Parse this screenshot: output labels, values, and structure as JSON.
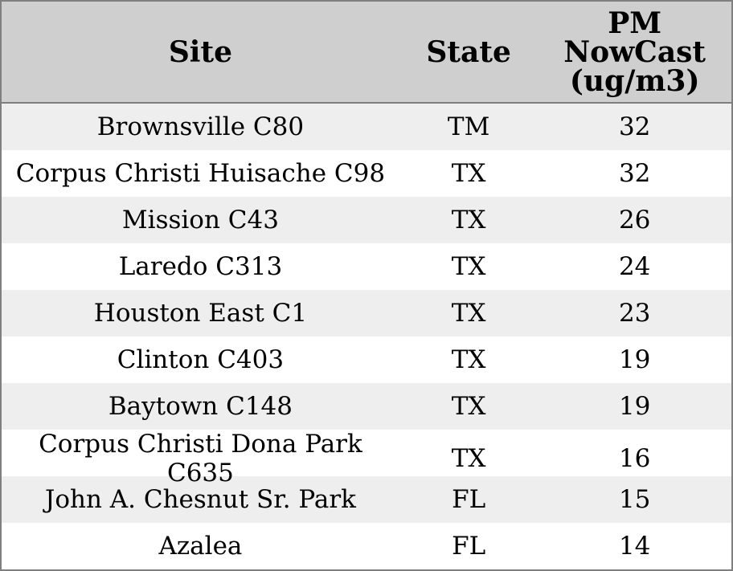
{
  "colors": {
    "header_bg": "#cfcfcf",
    "row_stripe_bg": "#eeeeee",
    "row_bg": "#ffffff",
    "border": "#7f7f7f",
    "text": "#000000"
  },
  "table": {
    "columns": [
      {
        "label": "Site"
      },
      {
        "label": "State"
      },
      {
        "label": "PM NowCast (ug/m3)"
      }
    ],
    "rows": [
      {
        "site": "Brownsville C80",
        "state": "TM",
        "pm": "32"
      },
      {
        "site": "Corpus Christi Huisache C98",
        "state": "TX",
        "pm": "32"
      },
      {
        "site": "Mission C43",
        "state": "TX",
        "pm": "26"
      },
      {
        "site": "Laredo C313",
        "state": "TX",
        "pm": "24"
      },
      {
        "site": "Houston East C1",
        "state": "TX",
        "pm": "23"
      },
      {
        "site": "Clinton C403",
        "state": "TX",
        "pm": "19"
      },
      {
        "site": "Baytown C148",
        "state": "TX",
        "pm": "19"
      },
      {
        "site": "Corpus Christi Dona Park C635",
        "state": "TX",
        "pm": "16"
      },
      {
        "site": "John A. Chesnut Sr. Park",
        "state": "FL",
        "pm": "15"
      },
      {
        "site": "Azalea",
        "state": "FL",
        "pm": "14"
      }
    ]
  },
  "chart_data": {
    "type": "table",
    "columns": [
      "Site",
      "State",
      "PM NowCast (ug/m3)"
    ],
    "rows": [
      [
        "Brownsville C80",
        "TM",
        32
      ],
      [
        "Corpus Christi Huisache C98",
        "TX",
        32
      ],
      [
        "Mission C43",
        "TX",
        26
      ],
      [
        "Laredo C313",
        "TX",
        24
      ],
      [
        "Houston East C1",
        "TX",
        23
      ],
      [
        "Clinton C403",
        "TX",
        19
      ],
      [
        "Baytown C148",
        "TX",
        19
      ],
      [
        "Corpus Christi Dona Park C635",
        "TX",
        16
      ],
      [
        "John A. Chesnut Sr. Park",
        "FL",
        15
      ],
      [
        "Azalea",
        "FL",
        14
      ]
    ]
  }
}
